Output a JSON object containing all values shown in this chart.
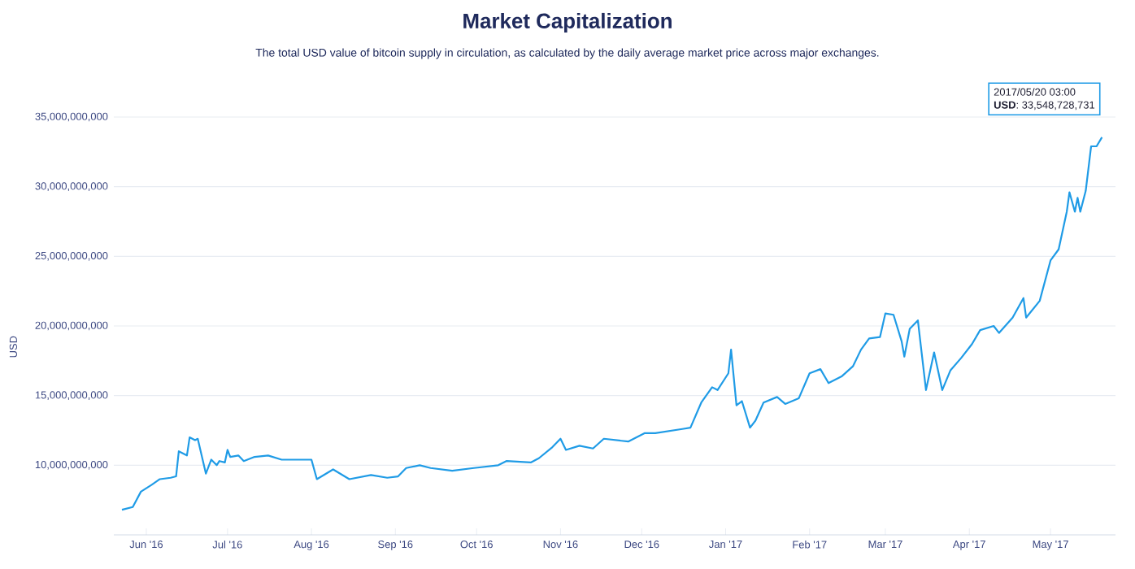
{
  "chart_data": {
    "type": "line",
    "title": "Market Capitalization",
    "subtitle": "The total USD value of bitcoin supply in circulation, as calculated by the daily average market price across major exchanges.",
    "ylabel": "USD",
    "x": [
      "2016-05-23",
      "2016-05-27",
      "2016-05-30",
      "2016-06-03",
      "2016-06-06",
      "2016-06-10",
      "2016-06-12",
      "2016-06-13",
      "2016-06-16",
      "2016-06-17",
      "2016-06-19",
      "2016-06-20",
      "2016-06-23",
      "2016-06-25",
      "2016-06-27",
      "2016-06-28",
      "2016-06-30",
      "2016-07-01",
      "2016-07-02",
      "2016-07-05",
      "2016-07-07",
      "2016-07-11",
      "2016-07-16",
      "2016-07-21",
      "2016-08-01",
      "2016-08-03",
      "2016-08-09",
      "2016-08-15",
      "2016-08-23",
      "2016-08-29",
      "2016-09-02",
      "2016-09-05",
      "2016-09-10",
      "2016-09-14",
      "2016-09-22",
      "2016-09-30",
      "2016-10-09",
      "2016-10-12",
      "2016-10-21",
      "2016-10-24",
      "2016-10-29",
      "2016-11-01",
      "2016-11-03",
      "2016-11-08",
      "2016-11-13",
      "2016-11-17",
      "2016-11-26",
      "2016-12-02",
      "2016-12-06",
      "2016-12-16",
      "2016-12-19",
      "2016-12-23",
      "2016-12-27",
      "2016-12-29",
      "2017-01-02",
      "2017-01-03",
      "2017-01-05",
      "2017-01-07",
      "2017-01-10",
      "2017-01-12",
      "2017-01-15",
      "2017-01-20",
      "2017-01-23",
      "2017-01-28",
      "2017-02-01",
      "2017-02-05",
      "2017-02-08",
      "2017-02-13",
      "2017-02-17",
      "2017-02-20",
      "2017-02-23",
      "2017-02-27",
      "2017-03-01",
      "2017-03-04",
      "2017-03-07",
      "2017-03-08",
      "2017-03-10",
      "2017-03-13",
      "2017-03-16",
      "2017-03-19",
      "2017-03-22",
      "2017-03-25",
      "2017-03-29",
      "2017-04-02",
      "2017-04-05",
      "2017-04-10",
      "2017-04-12",
      "2017-04-17",
      "2017-04-21",
      "2017-04-22",
      "2017-04-27",
      "2017-05-01",
      "2017-05-04",
      "2017-05-07",
      "2017-05-08",
      "2017-05-10",
      "2017-05-11",
      "2017-05-12",
      "2017-05-14",
      "2017-05-16",
      "2017-05-18",
      "2017-05-20"
    ],
    "series": [
      {
        "color": "#1f9be6",
        "values": [
          6800000000.0,
          7000000000.0,
          8100000000.0,
          8600000000.0,
          9000000000.0,
          9100000000.0,
          9200000000.0,
          11000000000.0,
          10700000000.0,
          12000000000.0,
          11800000000.0,
          11900000000.0,
          9400000000.0,
          10400000000.0,
          10000000000.0,
          10300000000.0,
          10200000000.0,
          11100000000.0,
          10600000000.0,
          10700000000.0,
          10300000000.0,
          10600000000.0,
          10700000000.0,
          10400000000.0,
          10400000000.0,
          9000000000.0,
          9700000000.0,
          9000000000.0,
          9300000000.0,
          9100000000.0,
          9200000000.0,
          9800000000.0,
          10000000000.0,
          9800000000.0,
          9600000000.0,
          9800000000.0,
          10000000000.0,
          10300000000.0,
          10200000000.0,
          10500000000.0,
          11300000000.0,
          11900000000.0,
          11100000000.0,
          11400000000.0,
          11200000000.0,
          11900000000.0,
          11700000000.0,
          12300000000.0,
          12300000000.0,
          12600000000.0,
          12700000000.0,
          14500000000.0,
          15600000000.0,
          15400000000.0,
          16600000000.0,
          18300000000.0,
          14300000000.0,
          14600000000.0,
          12700000000.0,
          13200000000.0,
          14500000000.0,
          14900000000.0,
          14400000000.0,
          14800000000.0,
          16600000000.0,
          16900000000.0,
          15900000000.0,
          16400000000.0,
          17100000000.0,
          18300000000.0,
          19100000000.0,
          19200000000.0,
          20900000000.0,
          20800000000.0,
          18900000000.0,
          17800000000.0,
          19800000000.0,
          20400000000.0,
          15400000000.0,
          18100000000.0,
          15400000000.0,
          16800000000.0,
          17700000000.0,
          18700000000.0,
          19700000000.0,
          20000000000.0,
          19500000000.0,
          20600000000.0,
          22000000000.0,
          20600000000.0,
          21800000000.0,
          24700000000.0,
          25500000000.0,
          28200000000.0,
          29600000000.0,
          28200000000.0,
          29200000000.0,
          28200000000.0,
          29700000000.0,
          32900000000.0,
          32900000000.0,
          33548728731
        ]
      }
    ],
    "xlim": [
      "2016-05-20",
      "2017-05-25"
    ],
    "xticks": [
      {
        "value": "2016-06-01",
        "label": "Jun '16"
      },
      {
        "value": "2016-07-01",
        "label": "Jul '16"
      },
      {
        "value": "2016-08-01",
        "label": "Aug '16"
      },
      {
        "value": "2016-09-01",
        "label": "Sep '16"
      },
      {
        "value": "2016-10-01",
        "label": "Oct '16"
      },
      {
        "value": "2016-11-01",
        "label": "Nov '16"
      },
      {
        "value": "2016-12-01",
        "label": "Dec '16"
      },
      {
        "value": "2017-01-01",
        "label": "Jan '17"
      },
      {
        "value": "2017-02-01",
        "label": "Feb '17"
      },
      {
        "value": "2017-03-01",
        "label": "Mar '17"
      },
      {
        "value": "2017-04-01",
        "label": "Apr '17"
      },
      {
        "value": "2017-05-01",
        "label": "May '17"
      }
    ],
    "ylim": [
      5000000000,
      35000000000
    ],
    "yticks": [
      {
        "value": 10000000000,
        "label": "10,000,000,000"
      },
      {
        "value": 15000000000,
        "label": "15,000,000,000"
      },
      {
        "value": 20000000000,
        "label": "20,000,000,000"
      },
      {
        "value": 25000000000,
        "label": "25,000,000,000"
      },
      {
        "value": 30000000000,
        "label": "30,000,000,000"
      },
      {
        "value": 35000000000,
        "label": "35,000,000,000"
      }
    ],
    "grid": "y",
    "annotations": [
      "2017/05/20 03:00",
      "**USD**: 33,548,728,731"
    ]
  }
}
